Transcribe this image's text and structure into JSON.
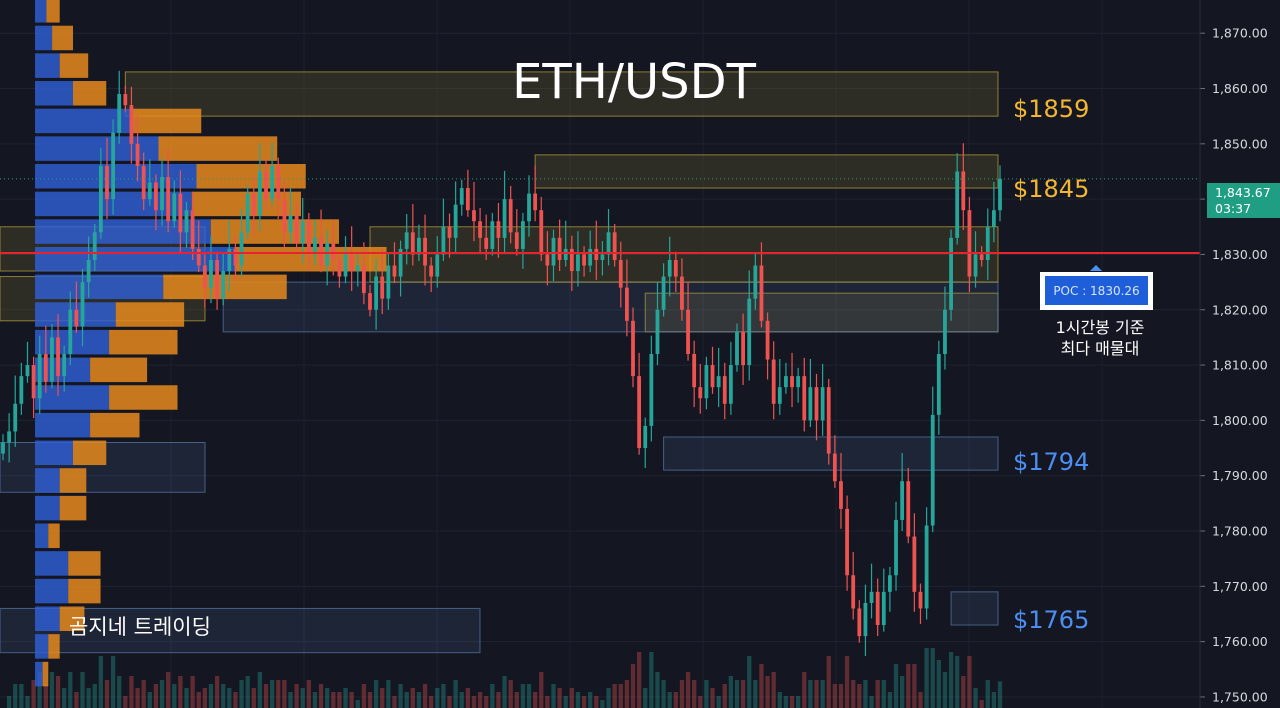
{
  "chart_data": {
    "type": "candlestick",
    "title": "ETH/USDT",
    "ylim": [
      1748,
      1876
    ],
    "y_ticks": [
      "1,870.00",
      "1,860.00",
      "1,850.00",
      "1,840.00",
      "1,830.00",
      "1,820.00",
      "1,810.00",
      "1,800.00",
      "1,790.00",
      "1,780.00",
      "1,770.00",
      "1,760.00",
      "1,750.00"
    ],
    "y_tick_values": [
      1870,
      1860,
      1850,
      1840,
      1830,
      1820,
      1810,
      1800,
      1790,
      1780,
      1770,
      1760,
      1750
    ],
    "current_price": {
      "value": 1843.67,
      "label": "1,843.67",
      "countdown": "03:37",
      "color": "#1f9e84"
    },
    "poc": {
      "value": 1830.26,
      "label": "POC : 1830.26",
      "color": "#e8232d"
    },
    "poc_caption": [
      "1시간봉 기준",
      "최다 매물대"
    ],
    "levels": [
      {
        "label": "$1859",
        "value": 1859,
        "color": "#f2b632"
      },
      {
        "label": "$1845",
        "value": 1845,
        "color": "#f2b632"
      },
      {
        "label": "$1794",
        "value": 1794,
        "color": "#4c8ff2"
      },
      {
        "label": "$1765",
        "value": 1765,
        "color": "#4c8ff2"
      }
    ],
    "zones": [
      {
        "kind": "supply",
        "from": 1855,
        "to": 1863,
        "start_candle": 20
      },
      {
        "kind": "supply",
        "from": 1842,
        "to": 1848,
        "start_candle": 87
      },
      {
        "kind": "demand",
        "from": 1791,
        "to": 1797,
        "start_candle": 108
      },
      {
        "kind": "demand",
        "from": 1763,
        "to": 1769,
        "start_candle": 155
      },
      {
        "kind": "supply",
        "from": 1816,
        "to": 1823,
        "start_candle": 105
      },
      {
        "kind": "demand",
        "from": 1816,
        "to": 1825,
        "start_candle": 36
      },
      {
        "kind": "supply",
        "from": 1827,
        "to": 1835,
        "start_candle": 0
      },
      {
        "kind": "supply",
        "from": 1818,
        "to": 1826,
        "start_candle": 0
      },
      {
        "kind": "demand",
        "from": 1787,
        "to": 1796,
        "start_candle": 0
      },
      {
        "kind": "demand",
        "from": 1758,
        "to": 1766,
        "start_candle": 0
      },
      {
        "kind": "supply",
        "from": 1825,
        "to": 1835,
        "start_candle": 60
      }
    ],
    "closes": [
      1796,
      1798,
      1803,
      1808,
      1810,
      1804,
      1812,
      1807,
      1815,
      1808,
      1812,
      1820,
      1817,
      1825,
      1829,
      1834,
      1846,
      1840,
      1852,
      1859,
      1857,
      1850,
      1846,
      1840,
      1843,
      1838,
      1844,
      1836,
      1841,
      1834,
      1838,
      1831,
      1828,
      1824,
      1829,
      1822,
      1827,
      1831,
      1828,
      1834,
      1841,
      1837,
      1845,
      1840,
      1846,
      1840,
      1834,
      1837,
      1832,
      1836,
      1830,
      1833,
      1828,
      1832,
      1829,
      1826,
      1830,
      1827,
      1828,
      1823,
      1820,
      1826,
      1822,
      1828,
      1826,
      1831,
      1834,
      1830,
      1833,
      1828,
      1826,
      1830,
      1835,
      1833,
      1839,
      1842,
      1838,
      1836,
      1833,
      1831,
      1836,
      1833,
      1840,
      1834,
      1831,
      1836,
      1841,
      1838,
      1830,
      1828,
      1833,
      1829,
      1831,
      1827,
      1830,
      1828,
      1831,
      1829,
      1830,
      1834,
      1829,
      1824,
      1818,
      1808,
      1795,
      1799,
      1812,
      1820,
      1826,
      1829,
      1826,
      1820,
      1812,
      1806,
      1804,
      1810,
      1806,
      1808,
      1803,
      1810,
      1816,
      1810,
      1822,
      1828,
      1818,
      1811,
      1803,
      1806,
      1808,
      1806,
      1808,
      1800,
      1806,
      1800,
      1806,
      1794,
      1789,
      1784,
      1772,
      1766,
      1761,
      1767,
      1769,
      1763,
      1769,
      1772,
      1782,
      1789,
      1779,
      1769,
      1766,
      1781,
      1801,
      1812,
      1820,
      1833,
      1845,
      1838,
      1826,
      1830,
      1829,
      1835,
      1838,
      1843.67
    ],
    "volume_profile": [
      {
        "price": 1874,
        "buy": 12,
        "sell": 14
      },
      {
        "price": 1869,
        "buy": 18,
        "sell": 22
      },
      {
        "price": 1864,
        "buy": 26,
        "sell": 30
      },
      {
        "price": 1859,
        "buy": 40,
        "sell": 35
      },
      {
        "price": 1854,
        "buy": 100,
        "sell": 75
      },
      {
        "price": 1849,
        "buy": 130,
        "sell": 125
      },
      {
        "price": 1844,
        "buy": 170,
        "sell": 115
      },
      {
        "price": 1839,
        "buy": 165,
        "sell": 115
      },
      {
        "price": 1834,
        "buy": 185,
        "sell": 135
      },
      {
        "price": 1829,
        "buy": 210,
        "sell": 160
      },
      {
        "price": 1824,
        "buy": 135,
        "sell": 130
      },
      {
        "price": 1819,
        "buy": 85,
        "sell": 72
      },
      {
        "price": 1814,
        "buy": 78,
        "sell": 72
      },
      {
        "price": 1809,
        "buy": 58,
        "sell": 60
      },
      {
        "price": 1804,
        "buy": 78,
        "sell": 72
      },
      {
        "price": 1799,
        "buy": 58,
        "sell": 52
      },
      {
        "price": 1794,
        "buy": 40,
        "sell": 35
      },
      {
        "price": 1789,
        "buy": 26,
        "sell": 28
      },
      {
        "price": 1784,
        "buy": 26,
        "sell": 28
      },
      {
        "price": 1779,
        "buy": 14,
        "sell": 12
      },
      {
        "price": 1774,
        "buy": 35,
        "sell": 34
      },
      {
        "price": 1769,
        "buy": 35,
        "sell": 34
      },
      {
        "price": 1764,
        "buy": 26,
        "sell": 26
      },
      {
        "price": 1759,
        "buy": 14,
        "sell": 12
      },
      {
        "price": 1754,
        "buy": 8,
        "sell": 6
      }
    ]
  },
  "colors": {
    "background": "#141722",
    "bull": "#26a69a",
    "bear": "#ef5350",
    "supply_zone": "#c9b13a",
    "demand_zone": "#5b82b8",
    "profile_buy": "#2f5fd6",
    "profile_sell": "#e68a1d"
  },
  "watermark": "곰지네 트레이딩"
}
